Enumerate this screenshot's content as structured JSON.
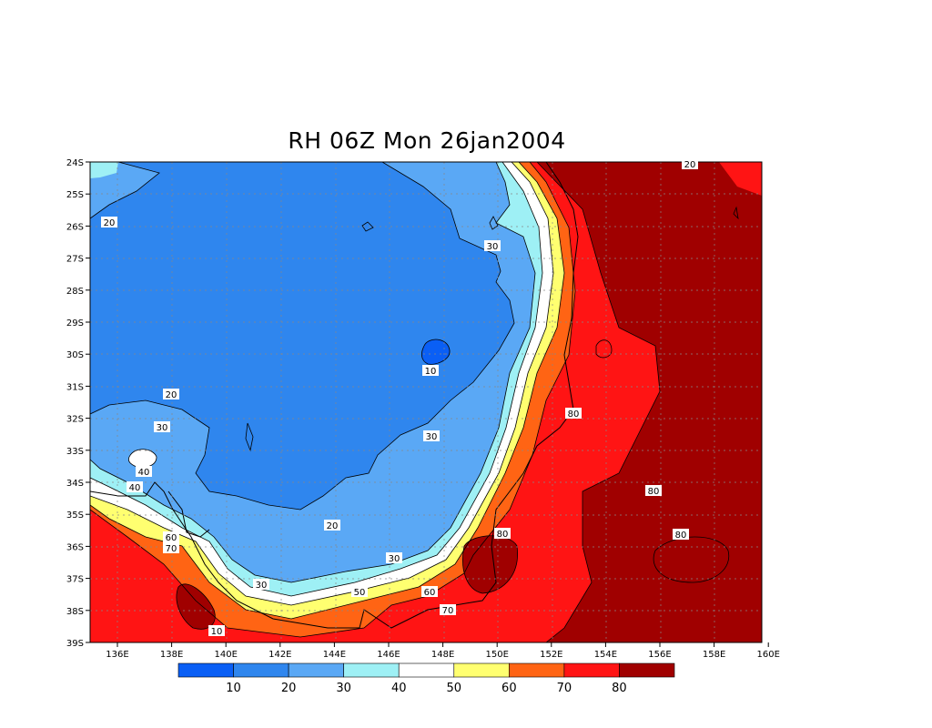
{
  "title": "RH 06Z Mon 26jan2004",
  "x_ticks": [
    "136E",
    "138E",
    "140E",
    "142E",
    "144E",
    "146E",
    "148E",
    "150E",
    "152E",
    "154E",
    "156E",
    "158E",
    "160E"
  ],
  "y_ticks": [
    "24S",
    "25S",
    "26S",
    "27S",
    "28S",
    "29S",
    "30S",
    "31S",
    "32S",
    "33S",
    "34S",
    "35S",
    "36S",
    "37S",
    "38S",
    "39S"
  ],
  "colorbar": {
    "colors": [
      "#0a5ff5",
      "#2f86ee",
      "#5aa8f5",
      "#9ef0f5",
      "#ffffff",
      "#ffff70",
      "#ff6414",
      "#ff1414",
      "#a00000"
    ],
    "labels": [
      "10",
      "20",
      "30",
      "40",
      "50",
      "60",
      "70",
      "80"
    ]
  },
  "contour_labels": [
    "20",
    "20",
    "20",
    "30",
    "30",
    "30",
    "40",
    "40",
    "50",
    "60",
    "60",
    "70",
    "70",
    "80",
    "80",
    "80",
    "80",
    "10",
    "20",
    "30"
  ],
  "chart_data": {
    "type": "heatmap",
    "title": "RH 06Z Mon 26jan2004",
    "x_range": [
      "135E",
      "160E"
    ],
    "y_range": [
      "24S",
      "39S"
    ],
    "levels": [
      10,
      20,
      30,
      40,
      50,
      60,
      70,
      80
    ]
  }
}
